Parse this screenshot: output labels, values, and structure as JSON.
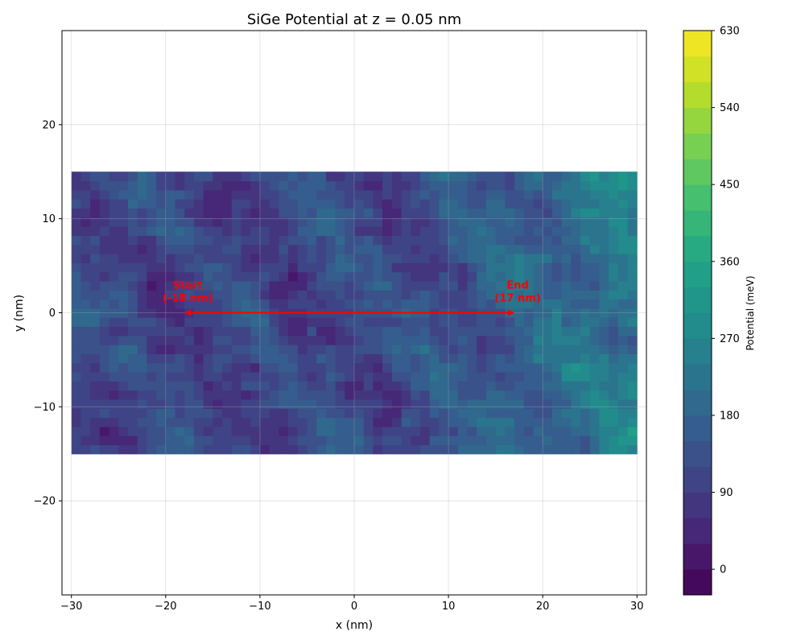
{
  "chart_data": {
    "type": "heatmap",
    "title": "SiGe Potential at z = 0.05 nm",
    "xlabel": "x (nm)",
    "ylabel": "y (nm)",
    "xlim": [
      -31,
      31
    ],
    "ylim": [
      -30,
      30
    ],
    "data_extent": {
      "x": [
        -30,
        30
      ],
      "y": [
        -15,
        15
      ]
    },
    "grid": true,
    "x_ticks": [
      -30,
      -20,
      -10,
      0,
      10,
      20,
      30
    ],
    "y_ticks": [
      -20,
      -10,
      0,
      10,
      20
    ],
    "x_tick_labels": [
      "−30",
      "−20",
      "−10",
      "0",
      "10",
      "20",
      "30"
    ],
    "y_tick_labels": [
      "−20",
      "−10",
      "0",
      "10",
      "20"
    ],
    "colormap": "viridis",
    "colorbar": {
      "label": "Potential (meV)",
      "range": [
        -30,
        630
      ],
      "levels": 22,
      "ticks": [
        0,
        90,
        180,
        270,
        360,
        450,
        540,
        630
      ],
      "tick_labels": [
        "0",
        "90",
        "180",
        "270",
        "360",
        "450",
        "540",
        "630"
      ]
    },
    "trend_description": "Potential is lowest (~0–150 meV) on the left and center and rises toward the right edge (~350–550 meV) with noisy fluctuations",
    "annotations": [
      {
        "id": "start",
        "x": -18,
        "y": 0,
        "line1": "Start",
        "line2": "(-18 nm)"
      },
      {
        "id": "end",
        "x": 17,
        "y": 0,
        "line1": "End",
        "line2": "(17 nm)"
      }
    ],
    "arrow": {
      "from": [
        -18,
        0
      ],
      "to": [
        17,
        0
      ],
      "color": "#ff0000",
      "style": "double-headed"
    }
  }
}
